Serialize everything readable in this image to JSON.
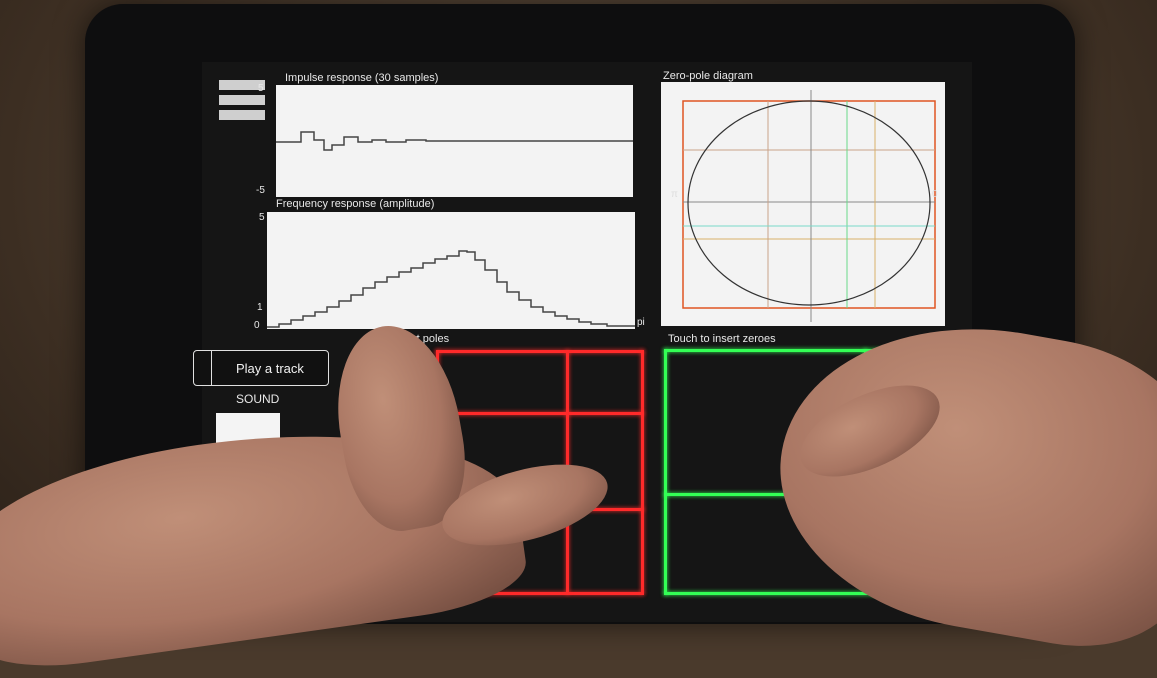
{
  "impulse": {
    "title": "Impulse response (30 samples)",
    "y_max": "5",
    "y_min": "-5"
  },
  "frequency": {
    "title": "Frequency response (amplitude)",
    "y_max": "5",
    "y_one": "1",
    "y_zero": "0",
    "x_end": "pi"
  },
  "zero_pole": {
    "title": "Zero-pole diagram",
    "left_mark": "π",
    "right_mark": "0"
  },
  "controls": {
    "play_label": "Play a track",
    "sound_label": "SOUND"
  },
  "pads": {
    "poles_label": "rt poles",
    "zeroes_label": "Touch to insert zeroes"
  },
  "colors": {
    "poles_pad": "#ff2a2a",
    "zeroes_pad": "#33ff55",
    "plot_background": "#f3f3f3"
  },
  "icons": {
    "menu": "hamburger-menu-icon"
  }
}
